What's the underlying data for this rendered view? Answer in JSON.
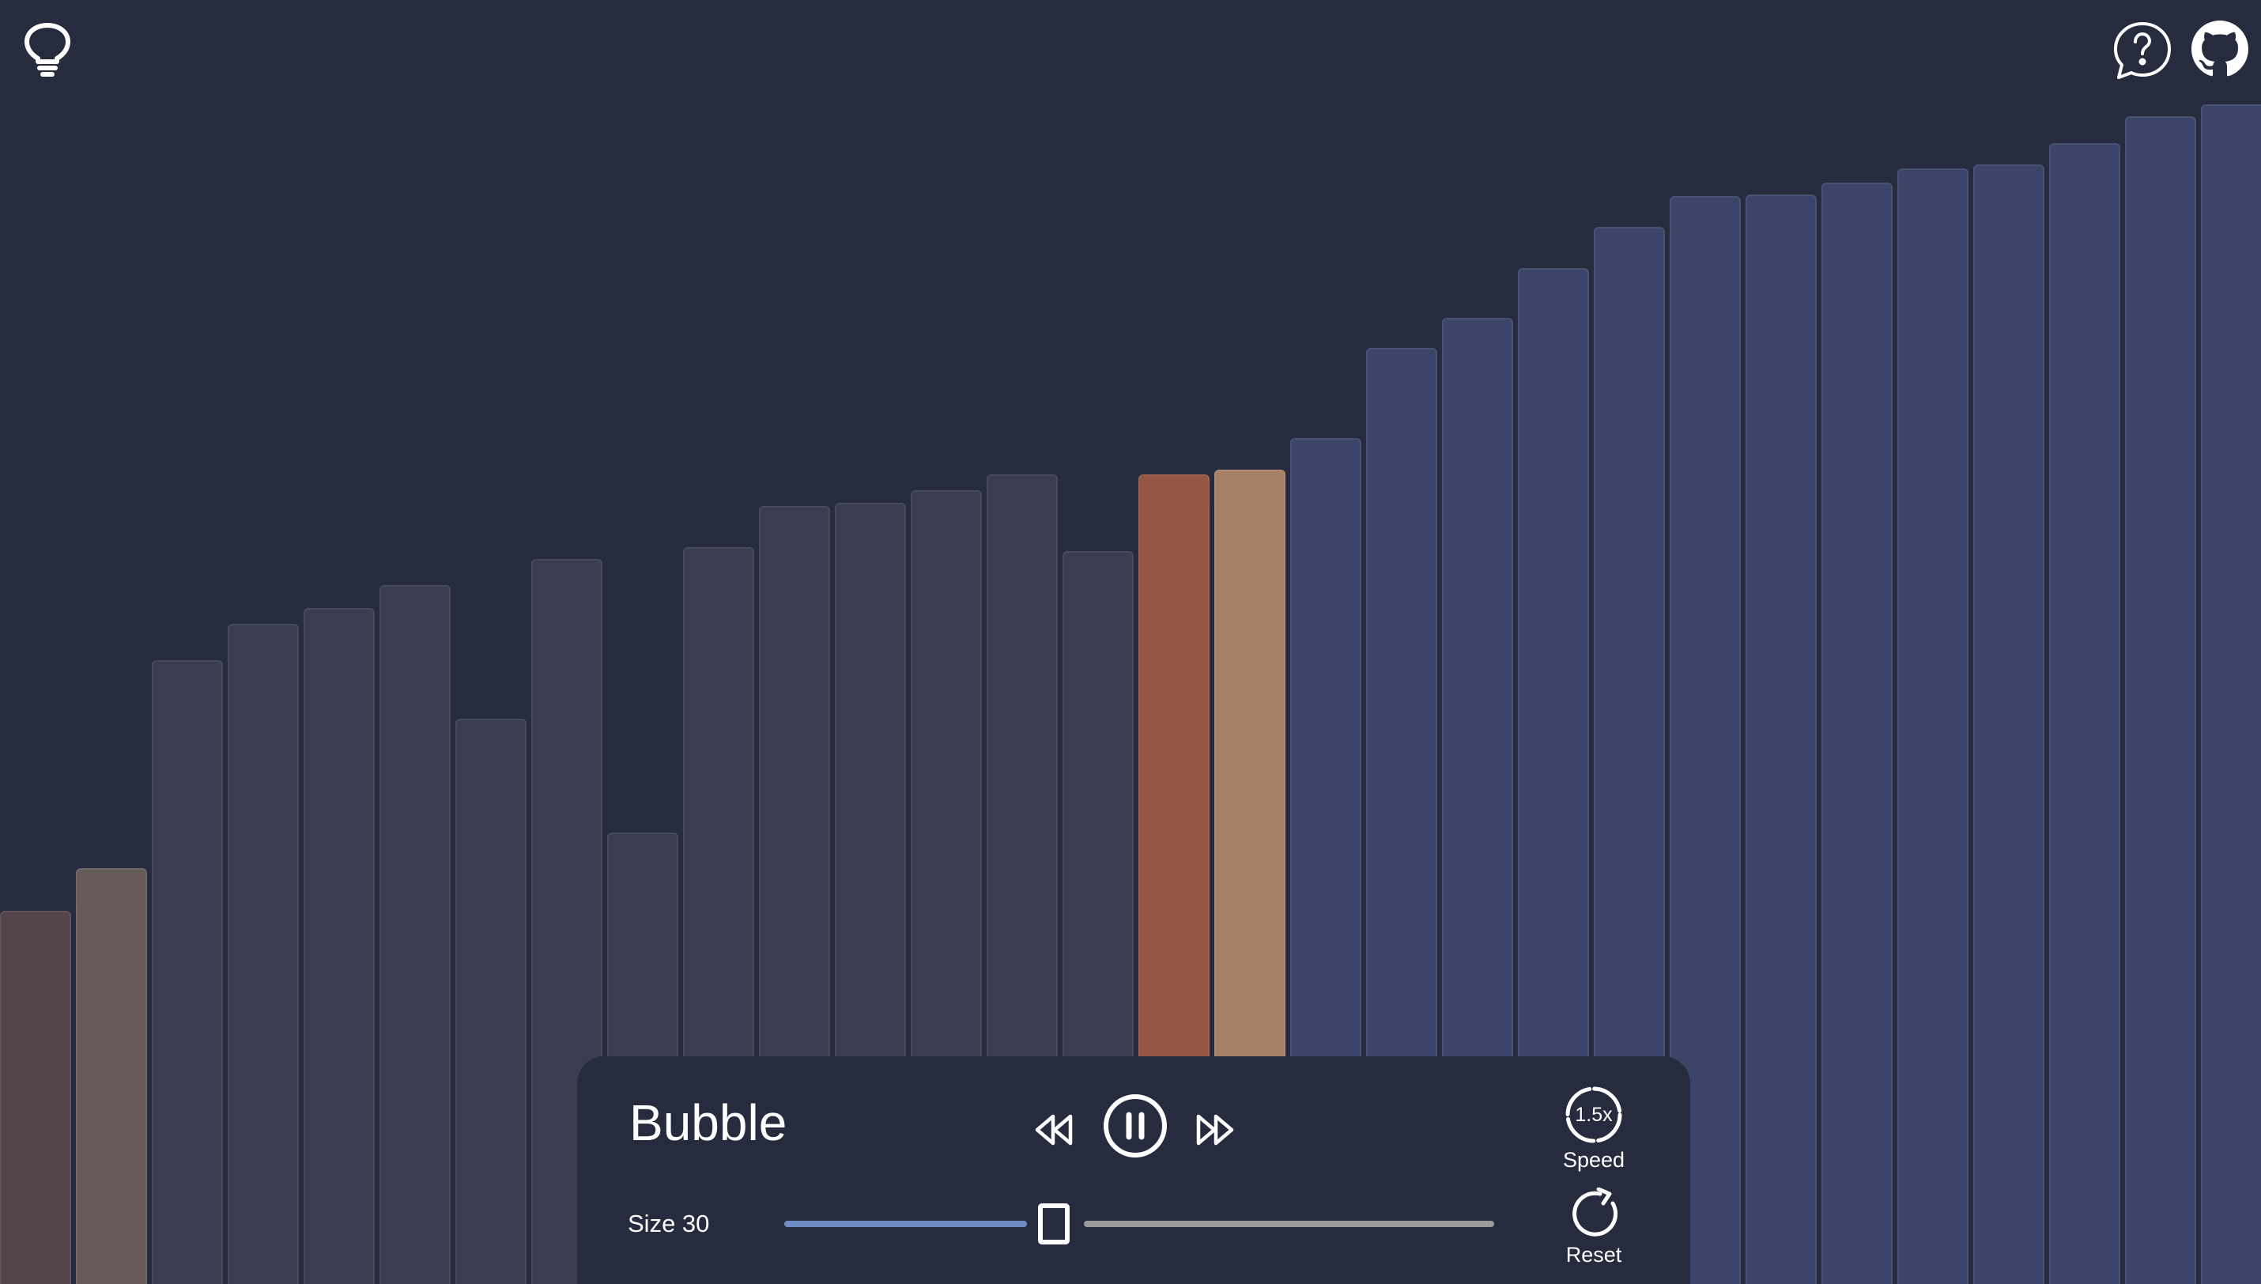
{
  "app": {
    "theme_icon": "lightbulb-icon",
    "help_icon": "help-bubble-icon",
    "github_icon": "github-icon"
  },
  "visualizer": {
    "colors": {
      "default": "#3a3d52",
      "sorted": "#3b4568",
      "comparing_a": "#955744",
      "comparing_b": "#a8806a",
      "faded_a": "#55444c",
      "faded_b": "#675a5a",
      "background": "#272b3e"
    },
    "bars": [
      {
        "value": 472,
        "state": "faded_a"
      },
      {
        "value": 526,
        "state": "faded_b"
      },
      {
        "value": 789,
        "state": "default"
      },
      {
        "value": 835,
        "state": "default"
      },
      {
        "value": 855,
        "state": "default"
      },
      {
        "value": 884,
        "state": "default"
      },
      {
        "value": 715,
        "state": "default"
      },
      {
        "value": 917,
        "state": "default"
      },
      {
        "value": 571,
        "state": "default"
      },
      {
        "value": 932,
        "state": "default"
      },
      {
        "value": 984,
        "state": "default"
      },
      {
        "value": 988,
        "state": "default"
      },
      {
        "value": 1004,
        "state": "default"
      },
      {
        "value": 1024,
        "state": "default"
      },
      {
        "value": 927,
        "state": "default"
      },
      {
        "value": 1024,
        "state": "comparing_a"
      },
      {
        "value": 1030,
        "state": "comparing_b"
      },
      {
        "value": 1070,
        "state": "sorted"
      },
      {
        "value": 1184,
        "state": "sorted"
      },
      {
        "value": 1222,
        "state": "sorted"
      },
      {
        "value": 1285,
        "state": "sorted"
      },
      {
        "value": 1337,
        "state": "sorted"
      },
      {
        "value": 1376,
        "state": "sorted"
      },
      {
        "value": 1378,
        "state": "sorted"
      },
      {
        "value": 1393,
        "state": "sorted"
      },
      {
        "value": 1411,
        "state": "sorted"
      },
      {
        "value": 1416,
        "state": "sorted"
      },
      {
        "value": 1443,
        "state": "sorted"
      },
      {
        "value": 1477,
        "state": "sorted"
      },
      {
        "value": 1492,
        "state": "sorted"
      }
    ]
  },
  "controls": {
    "algorithm_name": "Bubble",
    "prev_icon": "rewind-icon",
    "play_pause_icon": "pause-icon",
    "next_icon": "fast-forward-icon",
    "speed_value": "1.5x",
    "speed_label": "Speed",
    "size_label": "Size 30",
    "size_value": 30,
    "size_fraction": 0.38,
    "reset_label": "Reset",
    "reset_icon": "reset-icon"
  }
}
